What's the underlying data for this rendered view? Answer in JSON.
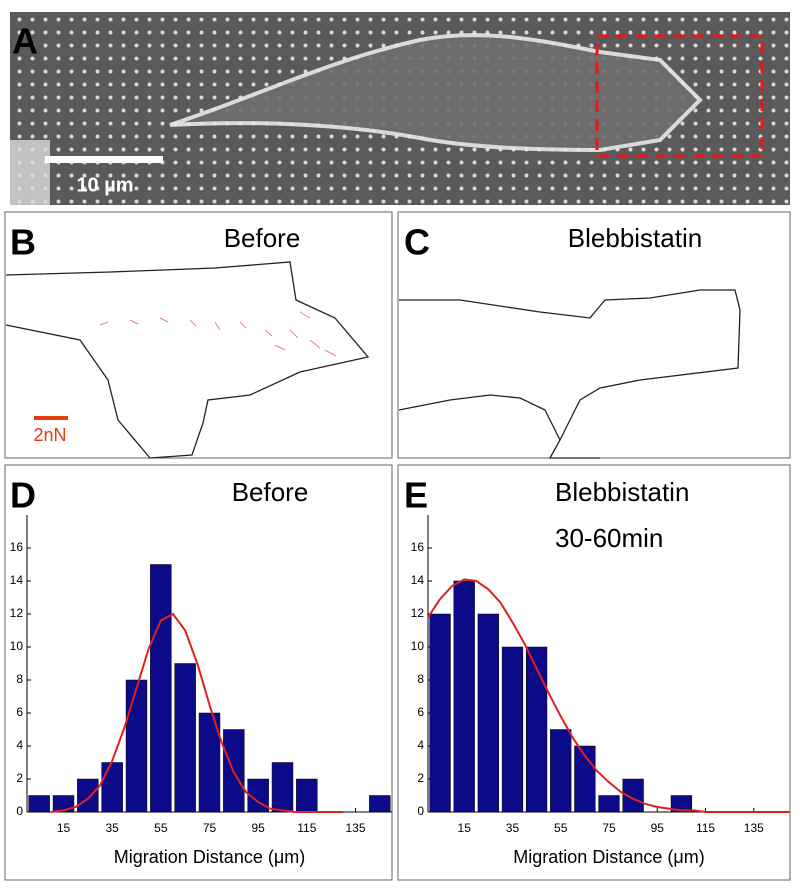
{
  "panels": {
    "A": {
      "label": "A",
      "scale_bar": "10 µm"
    },
    "B": {
      "label": "B",
      "title": "Before",
      "force_scale": "2nN"
    },
    "C": {
      "label": "C",
      "title": "Blebbistatin"
    }
  },
  "chart_data": [
    {
      "type": "histogram",
      "panel_label": "D",
      "title": "Before",
      "x_label": "Migration Distance (μm)",
      "bins": [
        0,
        10,
        20,
        30,
        40,
        50,
        60,
        70,
        80,
        90,
        100,
        110,
        120,
        130,
        140,
        150
      ],
      "values": [
        1,
        1,
        2,
        3,
        8,
        15,
        9,
        6,
        5,
        2,
        3,
        2,
        0,
        0,
        1
      ],
      "color": "#0b0b8a",
      "fit": {
        "color": "#e02020",
        "x": [
          10,
          15,
          20,
          25,
          30,
          35,
          40,
          45,
          50,
          55,
          60,
          65,
          70,
          75,
          80,
          85,
          90,
          95,
          100,
          105,
          110,
          115,
          120,
          125,
          130
        ],
        "values": [
          0.0,
          0.1,
          0.3,
          0.8,
          1.6,
          3.1,
          5.1,
          7.5,
          9.9,
          11.6,
          12.0,
          11.0,
          9.0,
          6.5,
          4.2,
          2.4,
          1.2,
          0.6,
          0.2,
          0.1,
          0.0,
          0.0,
          0.0,
          0.0,
          0.0
        ]
      },
      "xlim": [
        0,
        150
      ],
      "ylim": [
        0,
        18
      ],
      "xticks": [
        15,
        35,
        55,
        75,
        95,
        115,
        135
      ],
      "yticks": [
        0,
        2,
        4,
        6,
        8,
        10,
        12,
        14,
        16
      ]
    },
    {
      "type": "histogram",
      "panel_label": "E",
      "title": "Blebbistatin",
      "subtitle": "30-60min",
      "x_label": "Migration Distance (μm)",
      "bins": [
        0,
        10,
        20,
        30,
        40,
        50,
        60,
        70,
        80,
        90,
        100,
        110
      ],
      "values": [
        12,
        14,
        12,
        10,
        10,
        5,
        4,
        1,
        2,
        0,
        1
      ],
      "color": "#0b0b8a",
      "fit": {
        "color": "#e02020",
        "x": [
          0,
          5,
          10,
          15,
          20,
          25,
          30,
          35,
          40,
          45,
          50,
          55,
          60,
          65,
          70,
          75,
          80,
          85,
          90,
          95,
          100,
          105,
          110,
          115,
          120,
          125,
          130,
          135,
          140,
          145,
          150
        ],
        "values": [
          11.8,
          12.9,
          13.7,
          14.1,
          14.0,
          13.5,
          12.7,
          11.5,
          10.2,
          8.7,
          7.2,
          5.8,
          4.5,
          3.4,
          2.5,
          1.8,
          1.2,
          0.8,
          0.5,
          0.3,
          0.2,
          0.1,
          0.1,
          0.0,
          0.0,
          0.0,
          0.0,
          0.0,
          0.0,
          0.0,
          0.0
        ]
      },
      "xlim": [
        0,
        150
      ],
      "ylim": [
        0,
        18
      ],
      "xticks": [
        15,
        35,
        55,
        75,
        95,
        115,
        135
      ],
      "yticks": [
        0,
        2,
        4,
        6,
        8,
        10,
        12,
        14,
        16
      ]
    }
  ]
}
